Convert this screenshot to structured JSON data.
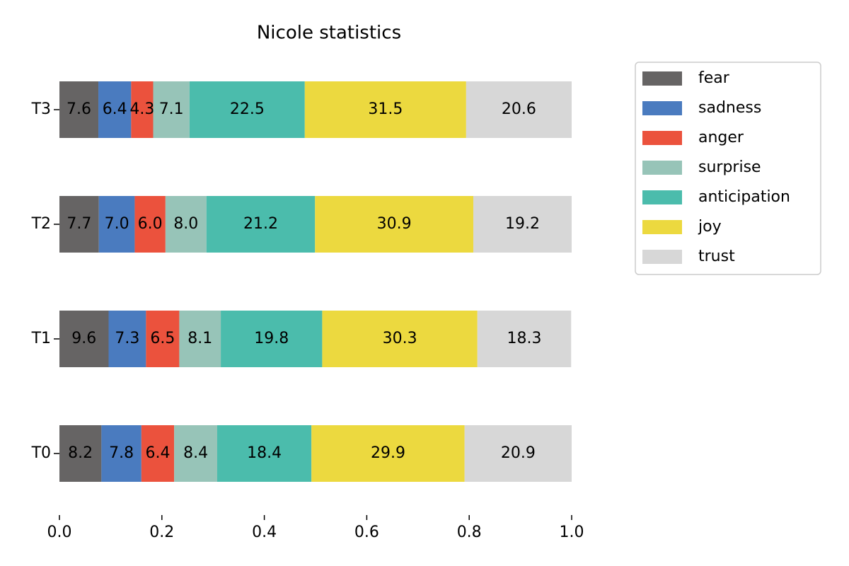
{
  "chart_data": {
    "type": "stacked-barh",
    "title": "Nicole statistics",
    "categories": [
      "T0",
      "T1",
      "T2",
      "T3"
    ],
    "series": [
      {
        "name": "fear",
        "color": "#666464",
        "values": [
          0.082,
          0.096,
          0.077,
          0.076
        ],
        "value_labels": [
          "8.2",
          "9.6",
          "7.7",
          "7.6"
        ]
      },
      {
        "name": "sadness",
        "color": "#4a7bbf",
        "values": [
          0.078,
          0.073,
          0.07,
          0.064
        ],
        "value_labels": [
          "7.8",
          "7.3",
          "7.0",
          "6.4"
        ]
      },
      {
        "name": "anger",
        "color": "#eb523d",
        "values": [
          0.064,
          0.065,
          0.06,
          0.043
        ],
        "value_labels": [
          "6.4",
          "6.5",
          "6.0",
          "4.3"
        ]
      },
      {
        "name": "surprise",
        "color": "#97c4b8",
        "values": [
          0.084,
          0.081,
          0.08,
          0.071
        ],
        "value_labels": [
          "8.4",
          "8.1",
          "8.0",
          "7.1"
        ]
      },
      {
        "name": "anticipation",
        "color": "#4bbcac",
        "values": [
          0.184,
          0.198,
          0.212,
          0.225
        ],
        "value_labels": [
          "18.4",
          "19.8",
          "21.2",
          "22.5"
        ]
      },
      {
        "name": "joy",
        "color": "#ecd93f",
        "values": [
          0.299,
          0.303,
          0.309,
          0.315
        ],
        "value_labels": [
          "29.9",
          "30.3",
          "30.9",
          "31.5"
        ]
      },
      {
        "name": "trust",
        "color": "#d7d7d7",
        "values": [
          0.209,
          0.183,
          0.192,
          0.206
        ],
        "value_labels": [
          "20.9",
          "18.3",
          "19.2",
          "20.6"
        ]
      }
    ],
    "xlim": [
      0,
      1
    ],
    "xticks": [
      {
        "value": 0,
        "label": "0.0"
      },
      0.2,
      0.4,
      0.6,
      0.8,
      {
        "value": 1,
        "label": "1.0"
      }
    ],
    "legend": "outside-right"
  }
}
